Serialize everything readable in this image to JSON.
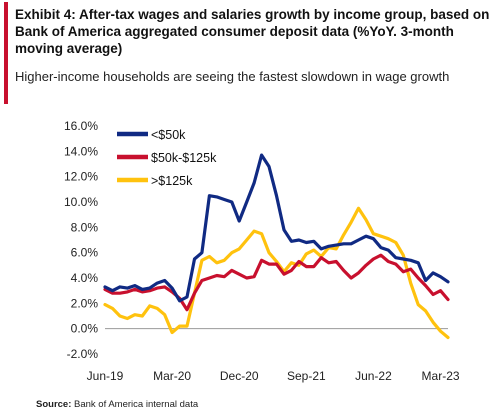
{
  "title": "Exhibit 4: After-tax wages and salaries growth by income group, based on Bank  of America aggregated consumer deposit data (%YoY. 3-month moving average)",
  "subtitle": "Higher-income households are seeing the fastest slowdown in wage growth",
  "source_label": "Source:",
  "source_text": "Bank of America internal data",
  "colors": {
    "accent": "#c8102e",
    "navy": "#102a83",
    "red": "#c8102e",
    "yellow": "#ffc20e"
  },
  "chart_data": {
    "type": "line",
    "x_tick_labels": [
      "Jun-19",
      "Mar-20",
      "Dec-20",
      "Sep-21",
      "Jun-22",
      "Mar-23"
    ],
    "x": [
      "Jun-19",
      "Jul-19",
      "Aug-19",
      "Sep-19",
      "Oct-19",
      "Nov-19",
      "Dec-19",
      "Jan-20",
      "Feb-20",
      "Mar-20",
      "Apr-20",
      "May-20",
      "Jun-20",
      "Jul-20",
      "Aug-20",
      "Sep-20",
      "Oct-20",
      "Nov-20",
      "Dec-20",
      "Jan-21",
      "Feb-21",
      "Mar-21",
      "Apr-21",
      "May-21",
      "Jun-21",
      "Jul-21",
      "Aug-21",
      "Sep-21",
      "Oct-21",
      "Nov-21",
      "Dec-21",
      "Jan-22",
      "Feb-22",
      "Mar-22",
      "Apr-22",
      "May-22",
      "Jun-22",
      "Jul-22",
      "Aug-22",
      "Sep-22",
      "Oct-22",
      "Nov-22",
      "Dec-22",
      "Jan-23",
      "Feb-23",
      "Mar-23",
      "Apr-23"
    ],
    "y_ticks": [
      16.0,
      14.0,
      12.0,
      10.0,
      8.0,
      6.0,
      4.0,
      2.0,
      0.0,
      -2.0
    ],
    "y_tick_labels": [
      "16.0%",
      "14.0%",
      "12.0%",
      "10.0%",
      "8.0%",
      "6.0%",
      "4.0%",
      "2.0%",
      "0.0%",
      "-2.0%"
    ],
    "ylim": [
      -2,
      16
    ],
    "legend_position": "top-left",
    "series": [
      {
        "name": "<$50k",
        "color": "#102a83",
        "values": [
          3.3,
          3.0,
          3.3,
          3.2,
          3.4,
          3.1,
          3.2,
          3.6,
          3.8,
          3.2,
          2.2,
          2.5,
          5.5,
          6.0,
          10.5,
          10.4,
          10.2,
          10.0,
          8.5,
          10.0,
          11.5,
          13.7,
          12.8,
          10.5,
          7.8,
          6.9,
          7.0,
          6.8,
          6.9,
          6.3,
          6.5,
          6.6,
          6.7,
          6.7,
          7.0,
          7.3,
          7.1,
          6.4,
          6.2,
          5.6,
          5.5,
          5.4,
          5.2,
          3.8,
          4.4,
          4.1,
          3.7
        ]
      },
      {
        "name": "$50k-$125k",
        "color": "#c8102e",
        "values": [
          3.1,
          2.8,
          2.8,
          2.9,
          3.1,
          2.9,
          3.0,
          3.2,
          3.3,
          2.9,
          2.4,
          1.5,
          2.8,
          3.8,
          4.0,
          4.2,
          4.1,
          4.6,
          4.3,
          4.0,
          4.1,
          5.4,
          5.1,
          5.1,
          4.3,
          4.6,
          5.3,
          4.9,
          4.9,
          5.6,
          5.2,
          5.3,
          4.6,
          4.0,
          4.4,
          5.0,
          5.5,
          5.8,
          5.3,
          5.1,
          4.5,
          4.7,
          4.0,
          3.4,
          2.7,
          3.0,
          2.3
        ]
      },
      {
        "name": ">$125k",
        "color": "#ffc20e",
        "values": [
          1.9,
          1.6,
          1.0,
          0.8,
          1.1,
          1.0,
          1.8,
          1.6,
          1.1,
          -0.3,
          0.2,
          0.2,
          2.8,
          5.4,
          5.7,
          5.2,
          5.4,
          6.0,
          6.3,
          7.0,
          7.7,
          7.5,
          6.0,
          5.3,
          4.5,
          5.2,
          5.0,
          5.9,
          6.2,
          5.7,
          6.4,
          6.3,
          7.4,
          8.4,
          9.5,
          8.6,
          7.5,
          7.3,
          7.1,
          6.8,
          5.8,
          3.6,
          1.9,
          1.4,
          0.5,
          -0.2,
          -0.7
        ]
      }
    ]
  }
}
